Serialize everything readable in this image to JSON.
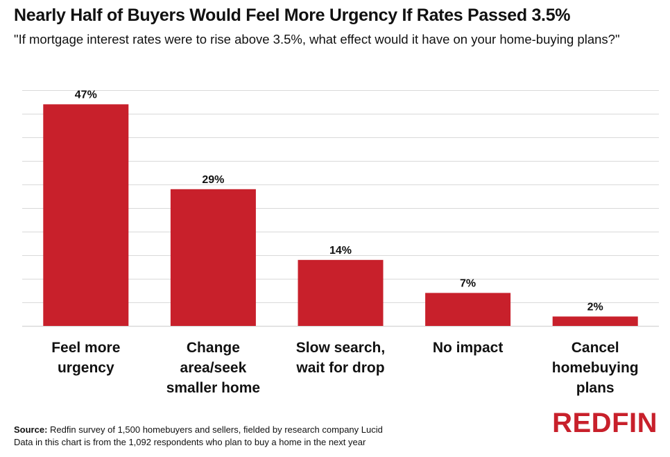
{
  "title": "Nearly Half of Buyers Would Feel More Urgency If Rates Passed 3.5%",
  "subtitle": "\"If mortgage interest rates were to rise above 3.5%, what effect would it have on your home-buying plans?\"",
  "colors": {
    "bar": "#c8202b",
    "grid": "#d9d9d9",
    "text": "#111111",
    "logo": "#c8202b"
  },
  "chart_data": {
    "type": "bar",
    "categories": [
      [
        "Feel more",
        "urgency"
      ],
      [
        "Change",
        "area/seek",
        "smaller home"
      ],
      [
        "Slow search,",
        "wait for drop"
      ],
      [
        "No impact"
      ],
      [
        "Cancel",
        "homebuying",
        "plans"
      ]
    ],
    "values": [
      47,
      29,
      14,
      7,
      2
    ],
    "data_labels": [
      "47%",
      "29%",
      "14%",
      "7%",
      "2%"
    ],
    "unit": "%",
    "ylim": [
      0,
      50
    ],
    "grid": true,
    "y_tick_labels_shown": false
  },
  "footer": {
    "source_label": "Source:",
    "source_text": " Redfin survey of 1,500 homebuyers and sellers, fielded by research company Lucid",
    "note": "Data in this chart is from the 1,092 respondents who plan to buy a home in the next year"
  },
  "logo_text": "REDFIN"
}
